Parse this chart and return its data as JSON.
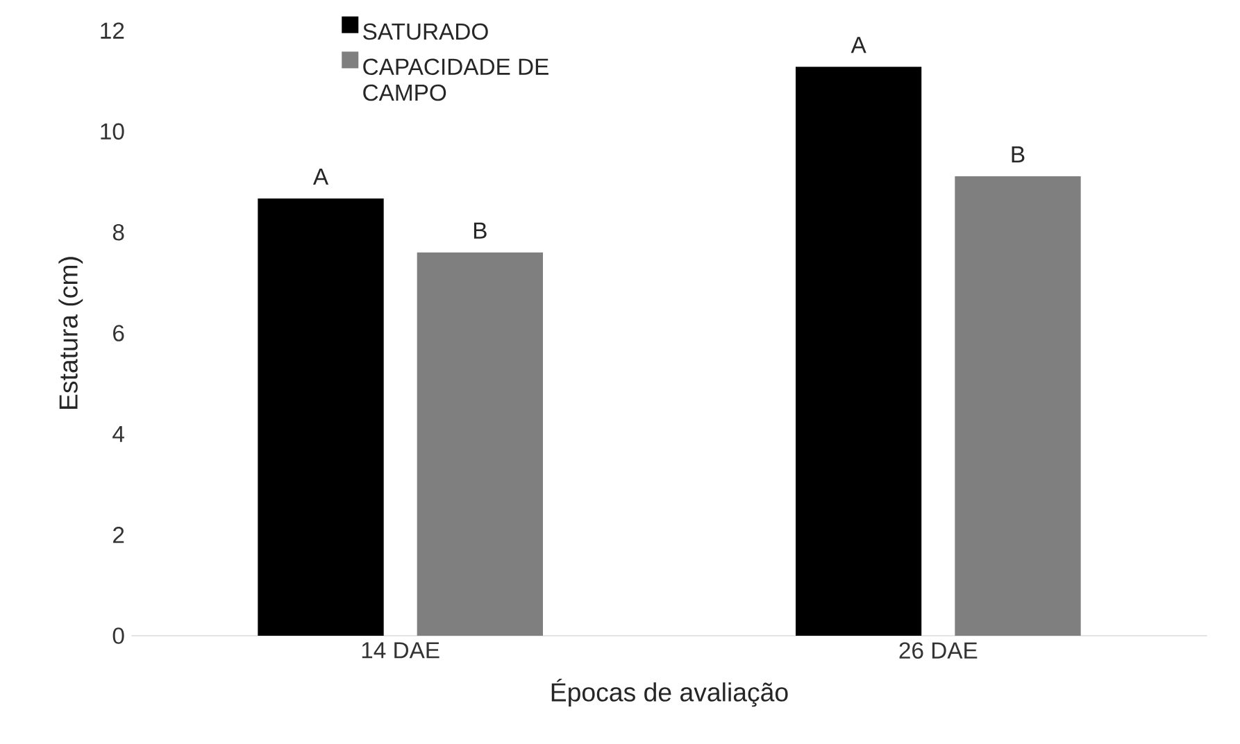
{
  "chart_data": {
    "type": "bar",
    "xlabel": "Épocas de avaliação",
    "ylabel": "Estatura (cm)",
    "categories": [
      "14 DAE",
      "26 DAE"
    ],
    "series": [
      {
        "name": "SATURADO",
        "color": "#000000",
        "values": [
          8.67,
          11.28
        ],
        "value_labels": [
          "A",
          "A"
        ]
      },
      {
        "name": "CAPACIDADE DE CAMPO",
        "color": "#7f7f7f",
        "values": [
          7.6,
          9.11
        ],
        "value_labels": [
          "B",
          "B"
        ]
      }
    ],
    "ylim": [
      0,
      12
    ],
    "yticks": [
      0,
      2,
      4,
      6,
      8,
      10,
      12
    ],
    "legend": "top"
  }
}
